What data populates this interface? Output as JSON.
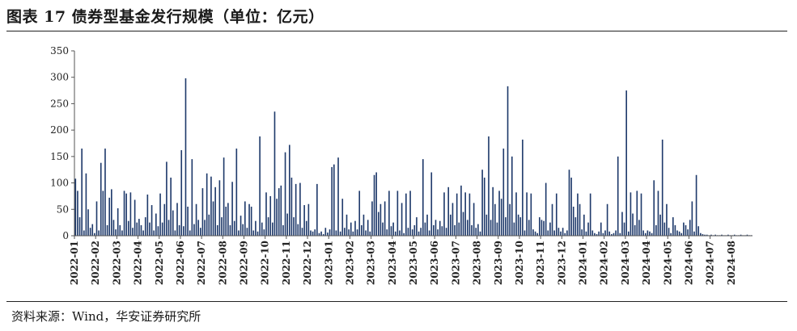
{
  "title": "图表 17 债券型基金发行规模（单位：亿元）",
  "source": "资料来源：Wind，华安证券研究所",
  "colors": {
    "bar": "#1f3a6b",
    "axis": "#555555"
  },
  "chart_data": {
    "type": "bar",
    "title": "图表 17 债券型基金发行规模（单位：亿元）",
    "ylabel": "",
    "xlabel": "",
    "ylim": [
      0,
      350
    ],
    "yticks": [
      0,
      50,
      100,
      150,
      200,
      250,
      300,
      350
    ],
    "grid": false,
    "xticks": [
      "2022-01",
      "2022-02",
      "2022-03",
      "2022-04",
      "2022-05",
      "2022-06",
      "2022-07",
      "2022-08",
      "2022-09",
      "2022-10",
      "2022-11",
      "2022-12",
      "2023-01",
      "2023-02",
      "2023-03",
      "2023-04",
      "2023-05",
      "2023-06",
      "2023-07",
      "2023-08",
      "2023-09",
      "2023-10",
      "2023-11",
      "2023-12",
      "2024-01",
      "2024-02",
      "2024-03",
      "2024-04",
      "2024-05",
      "2024-06",
      "2024-07",
      "2024-08"
    ],
    "monthly_values": [
      [
        108,
        85,
        35,
        165,
        10,
        118,
        50,
        15,
        22,
        5
      ],
      [
        65,
        10,
        138,
        85,
        165,
        20,
        72,
        88,
        30,
        12
      ],
      [
        52,
        20,
        10,
        85,
        80,
        28,
        82,
        15,
        68,
        25
      ],
      [
        32,
        20,
        10,
        35,
        78,
        25,
        58,
        10,
        42,
        18
      ],
      [
        80,
        25,
        60,
        140,
        30,
        110,
        48,
        10,
        62,
        20
      ],
      [
        162,
        18,
        298,
        55,
        10,
        145,
        22,
        60,
        30,
        15
      ],
      [
        90,
        30,
        118,
        40,
        112,
        65,
        92,
        20,
        105,
        35
      ],
      [
        148,
        55,
        62,
        20,
        102,
        28,
        165,
        10,
        38,
        22
      ],
      [
        65,
        15,
        60,
        55,
        10,
        28,
        8,
        188,
        25,
        12
      ],
      [
        82,
        35,
        75,
        25,
        235,
        70,
        90,
        95,
        20,
        158
      ],
      [
        42,
        172,
        110,
        35,
        98,
        22,
        100,
        15,
        58,
        28
      ],
      [
        60,
        10,
        8,
        12,
        98,
        5,
        8,
        3,
        15,
        6
      ],
      [
        12,
        130,
        135,
        10,
        148,
        8,
        70,
        15,
        40,
        12
      ],
      [
        25,
        8,
        28,
        12,
        85,
        20,
        40,
        10,
        30,
        8
      ],
      [
        65,
        115,
        120,
        45,
        60,
        25,
        65,
        12,
        85,
        18
      ],
      [
        25,
        8,
        85,
        10,
        62,
        5,
        80,
        15,
        85,
        12
      ],
      [
        20,
        35,
        8,
        15,
        145,
        25,
        40,
        10,
        120,
        20
      ],
      [
        30,
        12,
        28,
        18,
        82,
        15,
        92,
        40,
        62,
        20
      ],
      [
        80,
        25,
        95,
        45,
        82,
        30,
        80,
        20,
        62,
        15
      ],
      [
        22,
        8,
        125,
        110,
        40,
        188,
        30,
        92,
        60,
        25
      ],
      [
        85,
        70,
        165,
        35,
        283,
        60,
        150,
        25,
        82,
        40
      ],
      [
        35,
        182,
        10,
        82,
        30,
        80,
        12,
        8,
        5,
        35
      ],
      [
        30,
        28,
        100,
        10,
        25,
        60,
        10,
        80,
        15,
        8
      ],
      [
        15,
        5,
        10,
        125,
        110,
        55,
        35,
        80,
        60,
        12
      ],
      [
        40,
        8,
        25,
        80,
        10,
        5,
        3,
        8,
        25,
        5
      ],
      [
        10,
        60,
        8,
        3,
        5,
        10,
        150,
        5,
        45,
        25
      ],
      [
        275,
        8,
        82,
        42,
        20,
        85,
        30,
        80,
        10,
        5
      ],
      [
        10,
        8,
        5,
        105,
        20,
        85,
        40,
        182,
        25,
        60
      ],
      [
        15,
        5,
        35,
        20,
        10,
        8,
        5,
        25,
        20,
        12
      ],
      [
        30,
        65,
        8,
        115,
        18,
        5,
        3,
        2,
        2,
        1
      ],
      [
        2,
        1,
        2,
        1,
        1,
        2,
        1,
        1,
        2,
        1
      ],
      [
        1,
        2,
        1,
        1,
        2,
        1,
        1,
        2,
        1,
        1
      ]
    ]
  }
}
